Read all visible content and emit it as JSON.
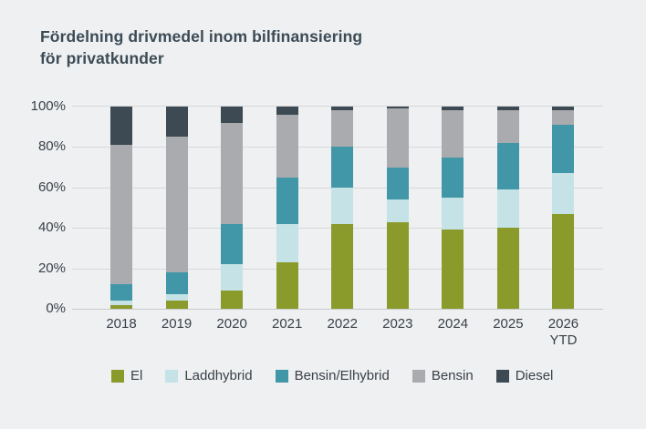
{
  "page": {
    "background": "#eef0f2"
  },
  "title": {
    "line1": "Fördelning drivmedel inom bilfinansiering",
    "line2": "för privatkunder"
  },
  "chart_data": {
    "type": "bar",
    "stacked": true,
    "percent": true,
    "title": "Fördelning drivmedel inom bilfinansiering för privatkunder",
    "categories": [
      "2018",
      "2019",
      "2020",
      "2021",
      "2022",
      "2023",
      "2024",
      "2025",
      "2026\nYTD"
    ],
    "series": [
      {
        "name": "El",
        "color": "#8a9a2b",
        "values": [
          2,
          4,
          9,
          23,
          42,
          43,
          39,
          40,
          47
        ]
      },
      {
        "name": "Laddhybrid",
        "color": "#c5e3e7",
        "values": [
          2,
          3,
          13,
          19,
          18,
          11,
          16,
          19,
          20
        ]
      },
      {
        "name": "Bensin/Elhybrid",
        "color": "#4197a8",
        "values": [
          8,
          11,
          20,
          23,
          20,
          16,
          20,
          23,
          24
        ]
      },
      {
        "name": "Bensin",
        "color": "#a9abae",
        "values": [
          69,
          67,
          50,
          31,
          18,
          29,
          23,
          16,
          7
        ]
      },
      {
        "name": "Diesel",
        "color": "#3d4a53",
        "values": [
          19,
          15,
          8,
          4,
          2,
          1,
          2,
          2,
          2
        ]
      }
    ],
    "yticks": [
      {
        "value": 0,
        "label": "0%"
      },
      {
        "value": 20,
        "label": "20%"
      },
      {
        "value": 40,
        "label": "40%"
      },
      {
        "value": 60,
        "label": "60%"
      },
      {
        "value": 80,
        "label": "80%"
      },
      {
        "value": 100,
        "label": "100%"
      }
    ],
    "ylim": [
      0,
      100
    ],
    "grid": true,
    "legend_position": "bottom"
  },
  "colors": {
    "background": "#eef0f2",
    "title_text": "#3c4b55",
    "axis_text": "#3a4147",
    "gridline": "#d6d8da",
    "axis_line": "#c7c9cb"
  }
}
